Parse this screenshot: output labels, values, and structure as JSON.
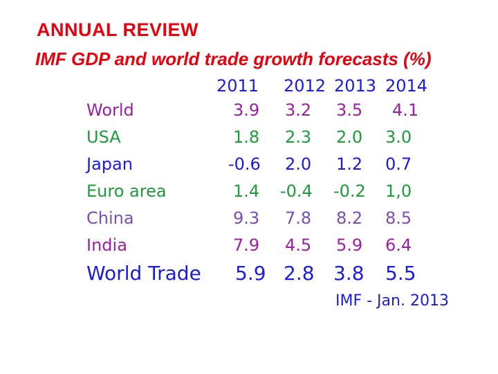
{
  "title": "ANNUAL REVIEW",
  "subtitle": "IMF GDP and world trade growth forecasts (%)",
  "table": {
    "years": [
      "2011",
      "2012",
      "2013",
      "2014"
    ],
    "rows": [
      {
        "name": "World",
        "values": [
          "3.9",
          "3.2",
          "3.5",
          "4.1"
        ],
        "color": "#9b1fa3"
      },
      {
        "name": "USA",
        "values": [
          "1.8",
          "2.3",
          "2.0",
          "3.0"
        ],
        "color": "#1d9a3a"
      },
      {
        "name": "Japan",
        "values": [
          "-0.6",
          "2.0",
          "1.2",
          "0.7"
        ],
        "color": "#1b1bdd"
      },
      {
        "name": "Euro area",
        "values": [
          "1.4",
          "-0.4",
          "-0.2",
          "1,0"
        ],
        "color": "#1d9a3a"
      },
      {
        "name": "China",
        "values": [
          "9.3",
          "7.8",
          "8.2",
          "8.5"
        ],
        "color": "#7a4fb0"
      },
      {
        "name": "India",
        "values": [
          "7.9",
          "4.5",
          "5.9",
          "6.4"
        ],
        "color": "#9b1fa3"
      },
      {
        "name": "World Trade",
        "values": [
          "5.9",
          "2.8",
          "3.8",
          "5.5"
        ],
        "color": "#1b1bdd"
      }
    ]
  },
  "source": "IMF - Jan. 2013"
}
